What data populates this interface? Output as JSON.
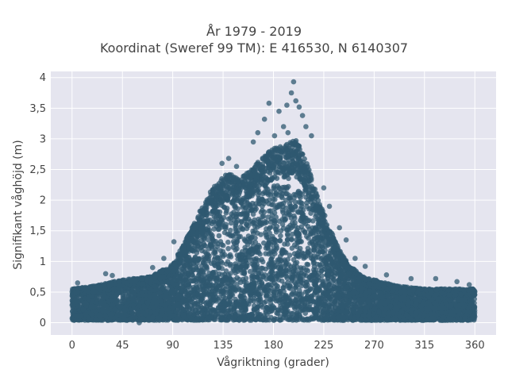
{
  "chart_data": {
    "type": "scatter",
    "title_lines": [
      "År 1979 - 2019",
      "Koordinat (Sweref 99 TM): E 416530, N 6140307"
    ],
    "xlabel": "Vågriktning (grader)",
    "ylabel": "Signifikant våghöjd (m)",
    "xlim": [
      -19,
      379
    ],
    "ylim": [
      -0.2,
      4.1
    ],
    "x_ticks": [
      0,
      45,
      90,
      135,
      180,
      225,
      270,
      315,
      360
    ],
    "x_tick_labels": [
      "0",
      "45",
      "90",
      "135",
      "180",
      "225",
      "270",
      "315",
      "360"
    ],
    "y_ticks": [
      0,
      0.5,
      1,
      1.5,
      2,
      2.5,
      3,
      3.5,
      4
    ],
    "y_tick_labels": [
      "0",
      "0,5",
      "1",
      "1,5",
      "2",
      "2,5",
      "3",
      "3,5",
      "4"
    ],
    "grid": true,
    "marker_color": "#2f5870",
    "background_color": "#e5e5ef",
    "envelope_x": [
      0,
      20,
      45,
      70,
      90,
      100,
      110,
      120,
      130,
      140,
      150,
      160,
      170,
      180,
      190,
      200,
      210,
      220,
      230,
      240,
      250,
      260,
      270,
      290,
      315,
      340,
      360
    ],
    "envelope_y": [
      0.55,
      0.6,
      0.7,
      0.75,
      0.95,
      1.3,
      1.65,
      2.05,
      2.3,
      2.45,
      2.35,
      2.5,
      2.7,
      2.85,
      2.9,
      3.0,
      2.6,
      2.05,
      1.55,
      1.15,
      0.9,
      0.75,
      0.7,
      0.6,
      0.55,
      0.55,
      0.55
    ],
    "outliers": [
      {
        "x": 198,
        "y": 3.93
      },
      {
        "x": 196,
        "y": 3.75
      },
      {
        "x": 200,
        "y": 3.62
      },
      {
        "x": 176,
        "y": 3.58
      },
      {
        "x": 192,
        "y": 3.55
      },
      {
        "x": 203,
        "y": 3.52
      },
      {
        "x": 185,
        "y": 3.45
      },
      {
        "x": 172,
        "y": 3.32
      },
      {
        "x": 206,
        "y": 3.38
      },
      {
        "x": 189,
        "y": 3.2
      },
      {
        "x": 209,
        "y": 3.2
      },
      {
        "x": 166,
        "y": 3.1
      },
      {
        "x": 181,
        "y": 3.05
      },
      {
        "x": 162,
        "y": 2.95
      },
      {
        "x": 193,
        "y": 3.1
      },
      {
        "x": 214,
        "y": 3.05
      },
      {
        "x": 140,
        "y": 2.68
      },
      {
        "x": 147,
        "y": 2.55
      },
      {
        "x": 134,
        "y": 2.6
      },
      {
        "x": 225,
        "y": 2.2
      },
      {
        "x": 230,
        "y": 1.9
      },
      {
        "x": 239,
        "y": 1.55
      },
      {
        "x": 245,
        "y": 1.35
      },
      {
        "x": 91,
        "y": 1.32
      },
      {
        "x": 96,
        "y": 1.12
      },
      {
        "x": 82,
        "y": 1.05
      },
      {
        "x": 72,
        "y": 0.9
      },
      {
        "x": 253,
        "y": 1.05
      },
      {
        "x": 262,
        "y": 0.92
      },
      {
        "x": 30,
        "y": 0.8
      },
      {
        "x": 36,
        "y": 0.77
      },
      {
        "x": 5,
        "y": 0.65
      },
      {
        "x": 52,
        "y": 0.68
      },
      {
        "x": 281,
        "y": 0.78
      },
      {
        "x": 303,
        "y": 0.72
      },
      {
        "x": 325,
        "y": 0.72
      },
      {
        "x": 344,
        "y": 0.67
      },
      {
        "x": 355,
        "y": 0.62
      },
      {
        "x": 60,
        "y": 0.0
      }
    ]
  }
}
